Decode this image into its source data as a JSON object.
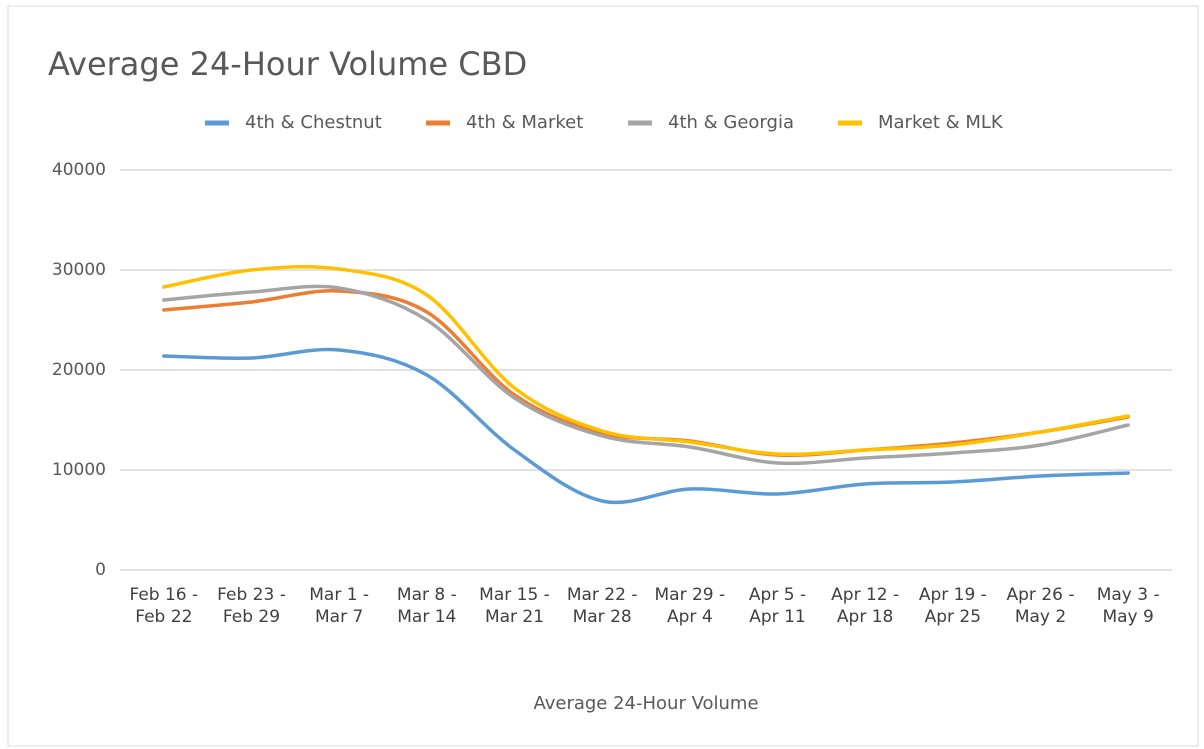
{
  "chart_data": {
    "type": "line",
    "title": "Average 24-Hour Volume CBD",
    "x_label": "Average 24-Hour Volume",
    "categories": [
      "Feb 16 - Feb 22",
      "Feb 23 - Feb 29",
      "Mar 1 - Mar 7",
      "Mar 8 - Mar 14",
      "Mar 15 - Mar 21",
      "Mar 22 - Mar 28",
      "Mar 29 - Apr 4",
      "Apr 5 - Apr 11",
      "Apr 12 - Apr 18",
      "Apr 19 - Apr 25",
      "Apr 26 - May 2",
      "May 3 - May 9"
    ],
    "series": [
      {
        "name": "4th & Chestnut",
        "color": "#5b9bd5",
        "values": [
          21400,
          21200,
          22000,
          19500,
          12000,
          6900,
          8100,
          7600,
          8600,
          8800,
          9400,
          9700
        ]
      },
      {
        "name": "4th & Market",
        "color": "#ed7d31",
        "values": [
          26000,
          26800,
          27900,
          25800,
          17500,
          13700,
          12900,
          11500,
          12000,
          12700,
          13800,
          15300
        ]
      },
      {
        "name": "4th & Georgia",
        "color": "#a5a5a5",
        "values": [
          27000,
          27800,
          28200,
          25000,
          17200,
          13400,
          12300,
          10700,
          11200,
          11700,
          12500,
          14500
        ]
      },
      {
        "name": "Market & MLK",
        "color": "#ffc000",
        "values": [
          28300,
          30000,
          30100,
          27500,
          18200,
          13900,
          12800,
          11600,
          12000,
          12500,
          13800,
          15400
        ]
      }
    ],
    "ylim": [
      0,
      40000
    ],
    "yticks": [
      0,
      10000,
      20000,
      30000,
      40000
    ],
    "grid": true,
    "smooth": true,
    "legend": "top"
  }
}
